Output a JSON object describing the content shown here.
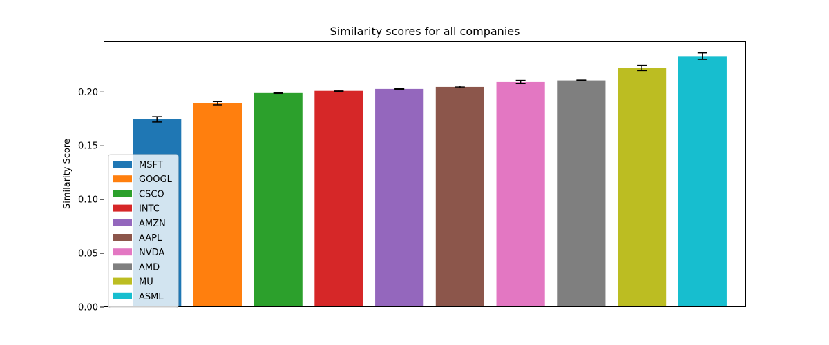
{
  "chart_data": {
    "type": "bar",
    "title": "Similarity scores for all companies",
    "xlabel": "",
    "ylabel": "Similarity Score",
    "ylim": [
      0,
      0.247
    ],
    "yticks": [
      "0.00",
      "0.05",
      "0.10",
      "0.15",
      "0.20"
    ],
    "grid": false,
    "legend_position": "lower-left",
    "categories": [
      "MSFT",
      "GOOGL",
      "CSCO",
      "INTC",
      "AMZN",
      "AAPL",
      "NVDA",
      "AMD",
      "MU",
      "ASML"
    ],
    "values": [
      0.1745,
      0.1895,
      0.199,
      0.201,
      0.2028,
      0.2047,
      0.2092,
      0.2107,
      0.2223,
      0.2333
    ],
    "errors": [
      0.0025,
      0.0015,
      0.0003,
      0.0005,
      0.0003,
      0.0007,
      0.0015,
      0.0003,
      0.0025,
      0.003
    ],
    "colors": [
      "#1f77b4",
      "#ff7f0e",
      "#2ca02c",
      "#d62728",
      "#9467bd",
      "#8c564b",
      "#e377c2",
      "#7f7f7f",
      "#bcbd22",
      "#17becf"
    ]
  }
}
